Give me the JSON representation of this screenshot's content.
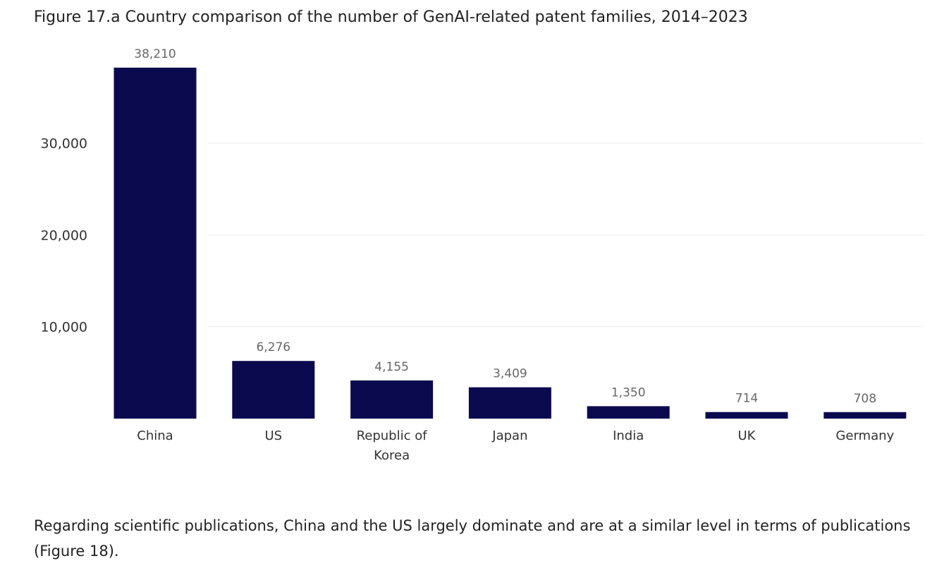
{
  "figure_title": "Figure 17.a Country comparison of the number of GenAI-related patent families, 2014–2023",
  "caption": "Regarding scientific publications, China and the US largely dominate and are at a similar level in terms of publications (Figure 18).",
  "colors": {
    "bar": "#0b0a4e",
    "grid": "#ebebeb",
    "label": "#666666",
    "tick": "#333333"
  },
  "chart_data": {
    "type": "bar",
    "title": "",
    "xlabel": "",
    "ylabel": "",
    "categories": [
      "China",
      "US",
      "Republic of Korea",
      "Japan",
      "India",
      "UK",
      "Germany"
    ],
    "category_lines": [
      [
        "China"
      ],
      [
        "US"
      ],
      [
        "Republic of",
        "Korea"
      ],
      [
        "Japan"
      ],
      [
        "India"
      ],
      [
        "UK"
      ],
      [
        "Germany"
      ]
    ],
    "values": [
      38210,
      6276,
      4155,
      3409,
      1350,
      714,
      708
    ],
    "value_labels": [
      "38,210",
      "6,276",
      "4,155",
      "3,409",
      "1,350",
      "714",
      "708"
    ],
    "yticks": [
      10000,
      20000,
      30000
    ],
    "ytick_labels": [
      "10,000",
      "20,000",
      "30,000"
    ],
    "ylim": [
      0,
      38210
    ],
    "grid": true,
    "legend": "none"
  }
}
